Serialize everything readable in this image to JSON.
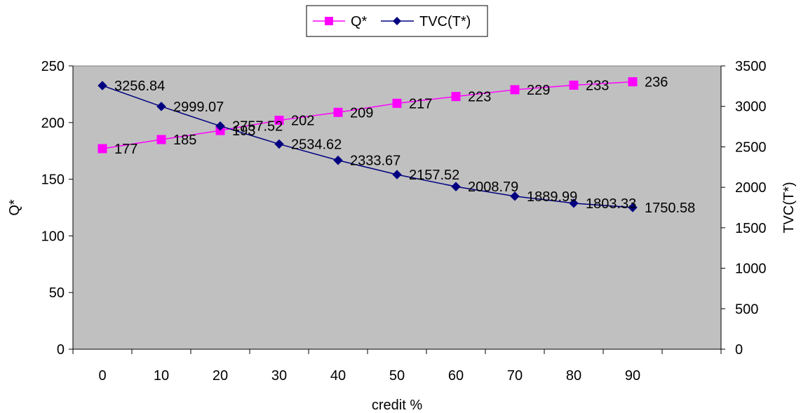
{
  "chart_data": {
    "type": "line",
    "xlabel": "credit %",
    "ylabel_left": "Q*",
    "ylabel_right": "TVC(T*)",
    "categories": [
      "0",
      "10",
      "20",
      "30",
      "40",
      "50",
      "60",
      "70",
      "80",
      "90"
    ],
    "ylim_left": [
      0,
      250
    ],
    "ylim_right": [
      0,
      3500
    ],
    "yticks_left": [
      0,
      50,
      100,
      150,
      200,
      250
    ],
    "yticks_right": [
      0,
      500,
      1000,
      1500,
      2000,
      2500,
      3000,
      3500
    ],
    "grid": false,
    "legend_position": "top-center",
    "plot_background": "#c0c0c0",
    "series": [
      {
        "name": "Q*",
        "axis": "left",
        "color": "#ff00ff",
        "marker": "square",
        "values": [
          177,
          185,
          193,
          202,
          209,
          217,
          223,
          229,
          233,
          236
        ],
        "labels": [
          "177",
          "185",
          "193",
          "202",
          "209",
          "217",
          "223",
          "229",
          "233",
          "236"
        ]
      },
      {
        "name": "TVC(T*)",
        "axis": "right",
        "color": "#000080",
        "marker": "diamond",
        "values": [
          3256.84,
          2999.07,
          2757.52,
          2534.62,
          2333.67,
          2157.52,
          2008.79,
          1889.99,
          1803.33,
          1750.58
        ],
        "labels": [
          "3256.84",
          "2999.07",
          "2757.52",
          "2534.62",
          "2333.67",
          "2157.52",
          "2008.79",
          "1889.99",
          "1803.33",
          "1750.58"
        ]
      }
    ]
  }
}
